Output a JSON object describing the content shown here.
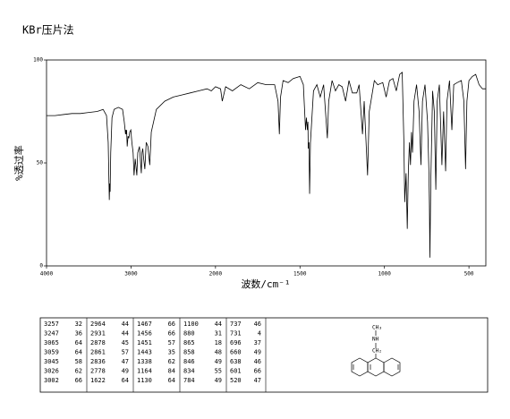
{
  "chart_data": {
    "type": "line",
    "title": "KBr压片法",
    "xlabel": "波数/cm⁻¹",
    "ylabel": "%透过率",
    "xlim": [
      4000,
      400
    ],
    "ylim": [
      0,
      100
    ],
    "xticks": [
      4000,
      3000,
      2000,
      1500,
      1000,
      500
    ],
    "yticks": [
      0,
      50,
      100
    ],
    "xscale": {
      "break": 2000,
      "ratio": 2
    },
    "color": "#000000",
    "x": [
      4000,
      3900,
      3800,
      3700,
      3600,
      3500,
      3400,
      3330,
      3290,
      3270,
      3257,
      3252,
      3247,
      3240,
      3225,
      3200,
      3150,
      3100,
      3080,
      3065,
      3062,
      3059,
      3052,
      3045,
      3035,
      3026,
      3015,
      3002,
      2990,
      2975,
      2964,
      2950,
      2931,
      2920,
      2900,
      2878,
      2870,
      2861,
      2850,
      2836,
      2820,
      2800,
      2778,
      2760,
      2700,
      2600,
      2500,
      2400,
      2300,
      2200,
      2100,
      2050,
      2000,
      1970,
      1960,
      1940,
      1900,
      1850,
      1800,
      1750,
      1700,
      1650,
      1630,
      1622,
      1615,
      1600,
      1570,
      1540,
      1500,
      1480,
      1467,
      1462,
      1456,
      1453,
      1451,
      1447,
      1443,
      1438,
      1420,
      1400,
      1380,
      1360,
      1338,
      1330,
      1310,
      1290,
      1270,
      1250,
      1230,
      1210,
      1190,
      1164,
      1150,
      1130,
      1120,
      1100,
      1090,
      1060,
      1040,
      1010,
      990,
      970,
      950,
      930,
      910,
      895,
      885,
      880,
      872,
      865,
      860,
      858,
      852,
      846,
      840,
      834,
      825,
      810,
      795,
      784,
      775,
      760,
      745,
      737,
      734,
      731,
      726,
      715,
      705,
      696,
      688,
      675,
      660,
      650,
      638,
      630,
      615,
      601,
      590,
      570,
      545,
      530,
      520,
      512,
      500,
      480,
      460,
      440,
      420,
      400
    ],
    "y": [
      73,
      73,
      73.5,
      74,
      74,
      74.5,
      75,
      76,
      73,
      60,
      32,
      40,
      36,
      55,
      72,
      76,
      77,
      76,
      70,
      64,
      66,
      64,
      66,
      58,
      63,
      62,
      65,
      66,
      60,
      55,
      44,
      52,
      44,
      55,
      58,
      45,
      55,
      57,
      52,
      47,
      60,
      58,
      49,
      65,
      76,
      80,
      82,
      83,
      84,
      85,
      86,
      85,
      87,
      86,
      80,
      87,
      85,
      88,
      86,
      89,
      88,
      88,
      80,
      64,
      82,
      90,
      89,
      91,
      92,
      88,
      66,
      72,
      66,
      70,
      57,
      60,
      35,
      60,
      85,
      88,
      82,
      88,
      62,
      80,
      90,
      85,
      88,
      87,
      80,
      90,
      84,
      84,
      88,
      64,
      80,
      44,
      75,
      90,
      88,
      89,
      82,
      90,
      91,
      85,
      93,
      94,
      60,
      31,
      45,
      18,
      40,
      48,
      60,
      49,
      65,
      55,
      80,
      88,
      75,
      49,
      80,
      88,
      70,
      46,
      30,
      4,
      40,
      85,
      75,
      37,
      80,
      88,
      49,
      75,
      46,
      80,
      90,
      66,
      88,
      89,
      90,
      80,
      47,
      80,
      90,
      92,
      93,
      88,
      86,
      86
    ]
  },
  "peak_table": [
    [
      3257,
      32
    ],
    [
      3247,
      36
    ],
    [
      3065,
      64
    ],
    [
      3059,
      64
    ],
    [
      3045,
      58
    ],
    [
      3026,
      62
    ],
    [
      3002,
      66
    ],
    [
      2964,
      44
    ],
    [
      2931,
      44
    ],
    [
      2878,
      45
    ],
    [
      2861,
      57
    ],
    [
      2836,
      47
    ],
    [
      2778,
      49
    ],
    [
      1622,
      64
    ],
    [
      1467,
      66
    ],
    [
      1456,
      66
    ],
    [
      1451,
      57
    ],
    [
      1443,
      35
    ],
    [
      1338,
      62
    ],
    [
      1164,
      84
    ],
    [
      1130,
      64
    ],
    [
      1100,
      44
    ],
    [
      880,
      31
    ],
    [
      865,
      18
    ],
    [
      858,
      48
    ],
    [
      846,
      49
    ],
    [
      834,
      55
    ],
    [
      784,
      49
    ],
    [
      737,
      46
    ],
    [
      731,
      4
    ],
    [
      696,
      37
    ],
    [
      660,
      49
    ],
    [
      638,
      46
    ],
    [
      601,
      66
    ],
    [
      520,
      47
    ]
  ],
  "structure_labels": [
    "CH₃",
    "NH",
    "CH₂"
  ]
}
